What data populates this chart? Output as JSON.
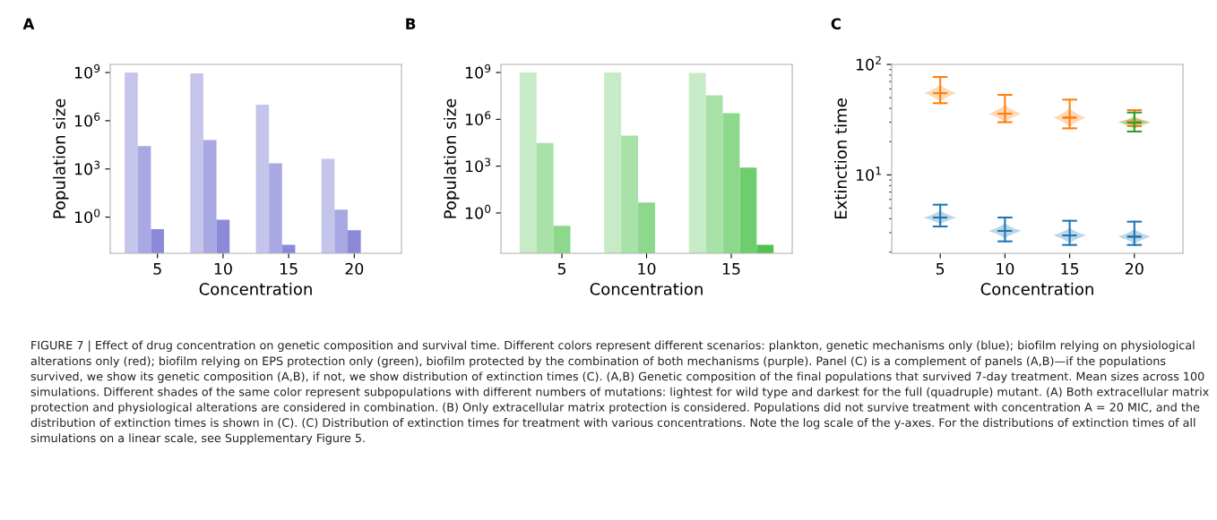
{
  "chart_data": [
    {
      "type": "bar",
      "title": "A",
      "xlabel": "Concentration",
      "ylabel": "Population size",
      "log": true,
      "categories": [
        "5",
        "10",
        "15",
        "20"
      ],
      "series": [
        {
          "color": "#c5c5ec",
          "values": [
            1000000000.0,
            900000000.0,
            10000000.0,
            4200
          ]
        },
        {
          "color": "#a8a8e2",
          "values": [
            26000,
            63000,
            2200,
            2.9
          ]
        },
        {
          "color": "#8a8ad8",
          "values": [
            0.18,
            0.68,
            0.019,
            0.15
          ]
        }
      ],
      "ylim": [
        0.0056,
        3200000000.0
      ],
      "yticks": [
        {
          "value": 1,
          "label": "10$^{0}$"
        },
        {
          "value": 1000,
          "label": "10$^{3}$"
        },
        {
          "value": 1000000,
          "label": "10$^{6}$"
        },
        {
          "value": 1000000000,
          "label": "10$^{9}$"
        }
      ],
      "annotations": [
        "FIGURE 7 | Effect of drug concentration on genetic composition and survival time. Different colors represent different scenarios: plankton, genetic mechanisms only (blue); biofilm relying on physiological alterations only (red); biofilm relying on EPS protection only (green), biofilm protected by the combination of both mechanisms (purple). Panel (C) is a complement of panels (A,B)—if the populations survived, we show its genetic composition (A,B), if not, we show distribution of extinction times (C). (A,B) Genetic composition of the final populations that survived 7-day treatment. Mean sizes across 100 simulations. Different shades of the same color represent subpopulations with different numbers of mutations: lightest for wild type and darkest for the full (quadruple) mutant. (A) Both extracellular matrix protection and physiological alterations are considered in combination. (B) Only extracellular matrix protection is considered. Populations did not survive treatment with concentration A = 20 MIC, and the distribution of extinction times is shown in (C). (C) Distribution of extinction times for treatment with various concentrations. Note the log scale of the y-axes. For the distributions of extinction times of all simulations on a linear scale, see Supplementary Figure 5."
      ]
    },
    {
      "type": "bar",
      "title": "B",
      "xlabel": "Concentration",
      "ylabel": "Population size",
      "log": true,
      "categories": [
        "5",
        "10",
        "15"
      ],
      "series": [
        {
          "color": "#c6ebc6",
          "values": [
            1000000000.0,
            1000000000.0,
            930000000.0
          ]
        },
        {
          "color": "#a8e2a8",
          "values": [
            31000,
            90000,
            35000000.0
          ]
        },
        {
          "color": "#8dd88d",
          "values": [
            0.15,
            4.7,
            2500000.0
          ]
        },
        {
          "color": "#6ecd6e",
          "values": [
            null,
            null,
            800
          ]
        },
        {
          "color": "#52c352",
          "values": [
            null,
            null,
            0.009
          ]
        }
      ],
      "ylim": [
        0.0026,
        3300000000.0
      ],
      "yticks": [
        {
          "value": 1,
          "label": "10$^{0}$"
        },
        {
          "value": 1000,
          "label": "10$^{3}$"
        },
        {
          "value": 1000000,
          "label": "10$^{6}$"
        },
        {
          "value": 1000000000,
          "label": "10$^{9}$"
        }
      ]
    },
    {
      "type": "box",
      "title": "C",
      "xlabel": "Concentration",
      "ylabel": "Extinction time",
      "log": true,
      "categories": [
        "5",
        "10",
        "15",
        "20"
      ],
      "series": [
        {
          "color": "#ff7f0e",
          "boxes": [
            {
              "low": 44.6,
              "q1": 55,
              "median": 55,
              "q3": 55,
              "high": 77
            },
            {
              "low": 30,
              "q1": 35.8,
              "median": 35.8,
              "q3": 35.8,
              "high": 53
            },
            {
              "low": 26.4,
              "q1": 33,
              "median": 33,
              "q3": 33,
              "high": 48
            },
            {
              "low": 27.6,
              "q1": 30.3,
              "median": 30.3,
              "q3": 30.3,
              "high": 38.6
            }
          ]
        },
        {
          "color": "#1f77b4",
          "boxes": [
            {
              "low": 3.41,
              "q1": 4.11,
              "median": 4.11,
              "q3": 4.11,
              "high": 5.37
            },
            {
              "low": 2.5,
              "q1": 3.11,
              "median": 3.11,
              "q3": 3.11,
              "high": 4.11
            },
            {
              "low": 2.32,
              "q1": 2.83,
              "median": 2.83,
              "q3": 2.83,
              "high": 3.84
            },
            {
              "low": 2.32,
              "q1": 2.76,
              "median": 2.76,
              "q3": 2.76,
              "high": 3.77
            }
          ]
        },
        {
          "color": "#2ca02c",
          "boxes": [
            null,
            null,
            null,
            {
              "low": 24.7,
              "q1": 29.7,
              "median": 29.7,
              "q3": 29.7,
              "high": 36.7
            }
          ]
        }
      ],
      "ylim": [
        1.95,
        100
      ],
      "yticks": [
        {
          "value": 10,
          "label": "10$^{1}$"
        },
        {
          "value": 100,
          "label": "10$^{2}$"
        }
      ]
    }
  ]
}
